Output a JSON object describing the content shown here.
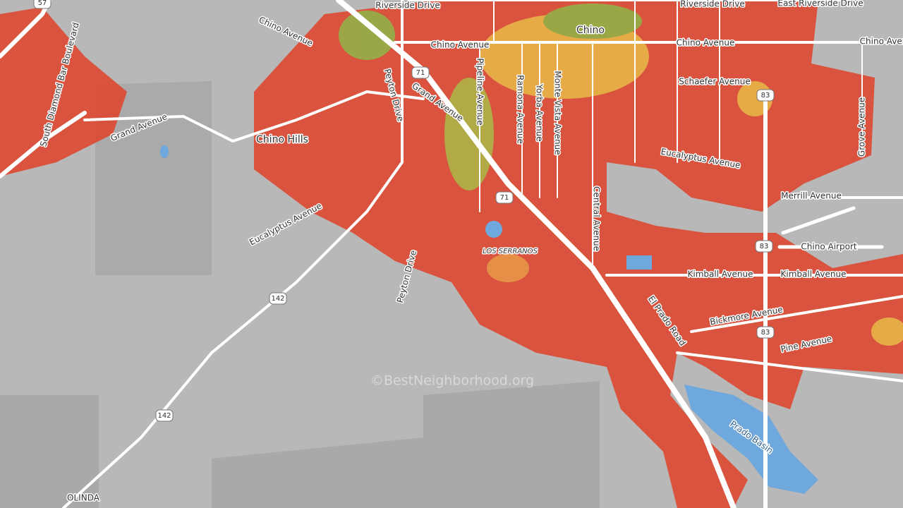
{
  "map": {
    "labels": [
      "Riverside Drive",
      "Riverside Drive",
      "East Riverside Drive",
      "Chino",
      "Chino Avenue",
      "Chino Avenue",
      "Chino Avenue",
      "Chino Avenue",
      "Schaefer Avenue",
      "Grand Avenue",
      "Grand Avenue",
      "Chino Hills",
      "Peyton Drive",
      "Peyton Drive",
      "Pipeline Avenue",
      "Ramona Avenue",
      "Yorba Avenue",
      "Monte Vista Avenue",
      "Central Avenue",
      "Grove Avenue",
      "Eucalyptus Avenue",
      "Eucalyptus Avenue",
      "Merrill Avenue",
      "Chino Airport",
      "Kimball Avenue",
      "Kimball Avenue",
      "Bickmore Avenue",
      "Pine Avenue",
      "El Prado Road",
      "Prado Basin",
      "LOS SERRANOS",
      "South Diamond Bar Boulevard",
      "OLINDA"
    ],
    "shields": [
      "57",
      "71",
      "71",
      "83",
      "83",
      "83",
      "142",
      "142"
    ],
    "watermark": "©BestNeighborhood.org"
  }
}
